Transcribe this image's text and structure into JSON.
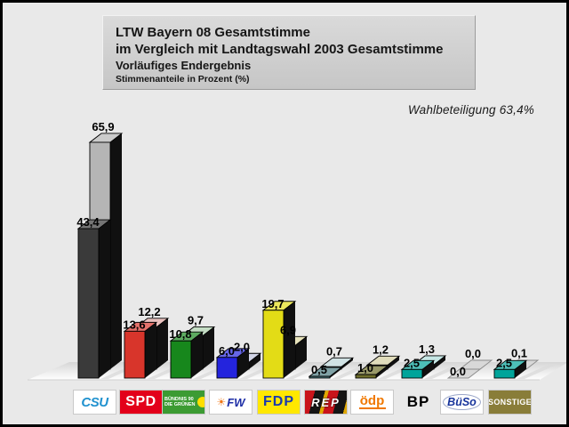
{
  "title_box": {
    "line1": "LTW Bayern 08 Gesamtstimme",
    "line2": "im Vergleich mit Landtagswahl 2003 Gesamtstimme",
    "line3": "Vorläufiges Endergebnis",
    "line4": "Stimmenanteile in Prozent (%)"
  },
  "annotation": {
    "turnout": "Wahlbeteiligung 63,4%"
  },
  "chart_data": {
    "type": "bar",
    "title": "LTW Bayern 08 Gesamtstimme im Vergleich mit Landtagswahl 2003 Gesamtstimme",
    "subtitle": "Vorläufiges Endergebnis",
    "unit": "Stimmenanteile in Prozent (%)",
    "annotation": "Wahlbeteiligung 63,4%",
    "legend_position": "none",
    "categories": [
      "CSU",
      "SPD",
      "GRÜNE",
      "FW",
      "FDP",
      "REP",
      "ödp",
      "BP",
      "BüSo",
      "SONSTIGE"
    ],
    "series": [
      {
        "name": "LTW Bayern 08",
        "values": [
          43.4,
          13.6,
          10.8,
          6.0,
          19.7,
          0.5,
          1.0,
          2.5,
          0.0,
          2.5
        ],
        "labels": [
          "43,4",
          "13,6",
          "10,8",
          "6,0",
          "19,7",
          "0,5",
          "1,0",
          "2,5",
          "0,0",
          "2,5"
        ]
      },
      {
        "name": "Landtagswahl 2003",
        "values": [
          65.9,
          12.2,
          9.7,
          2.0,
          6.9,
          0.7,
          1.2,
          1.3,
          0.0,
          0.1
        ],
        "labels": [
          "65,9",
          "12,2",
          "9,7",
          "2,0",
          "6,9",
          "0,7",
          "1,2",
          "1,3",
          "0,0",
          "0,1"
        ]
      }
    ],
    "ylim": [
      0,
      70
    ]
  },
  "party_styles": {
    "front_colors": [
      "#3a3a3a",
      "#d8352b",
      "#17871c",
      "#2424dd",
      "#e3dc16",
      "#4a7a80",
      "#6e6e2a",
      "#00a49a",
      "#b0b0b0",
      "#00a49a"
    ],
    "back_colors": [
      "#b5b5b5",
      "#dfa6a2",
      "#aacfaa",
      "#bcc0da",
      "#dcd79e",
      "#bcd6d8",
      "#d2cd9e",
      "#aedcda",
      "#c4c4c4",
      "#c8c8c8"
    ]
  },
  "legend": {
    "parties": [
      {
        "id": "csu",
        "label": "CSU"
      },
      {
        "id": "spd",
        "label": "SPD"
      },
      {
        "id": "gruene",
        "label": "BÜNDNIS 90 DIE GRÜNEN",
        "line1": "BÜNDNIS 90",
        "line2": "DIE GRÜNEN"
      },
      {
        "id": "fw",
        "label": "FW",
        "sun_icon": "☀"
      },
      {
        "id": "fdp",
        "label": "FDP"
      },
      {
        "id": "rep",
        "label": "REP"
      },
      {
        "id": "oedp",
        "label": "ödp"
      },
      {
        "id": "bp",
        "label": "BP"
      },
      {
        "id": "bueso",
        "label": "BüSo"
      },
      {
        "id": "sonstige",
        "label": "SONSTIGE"
      }
    ]
  }
}
